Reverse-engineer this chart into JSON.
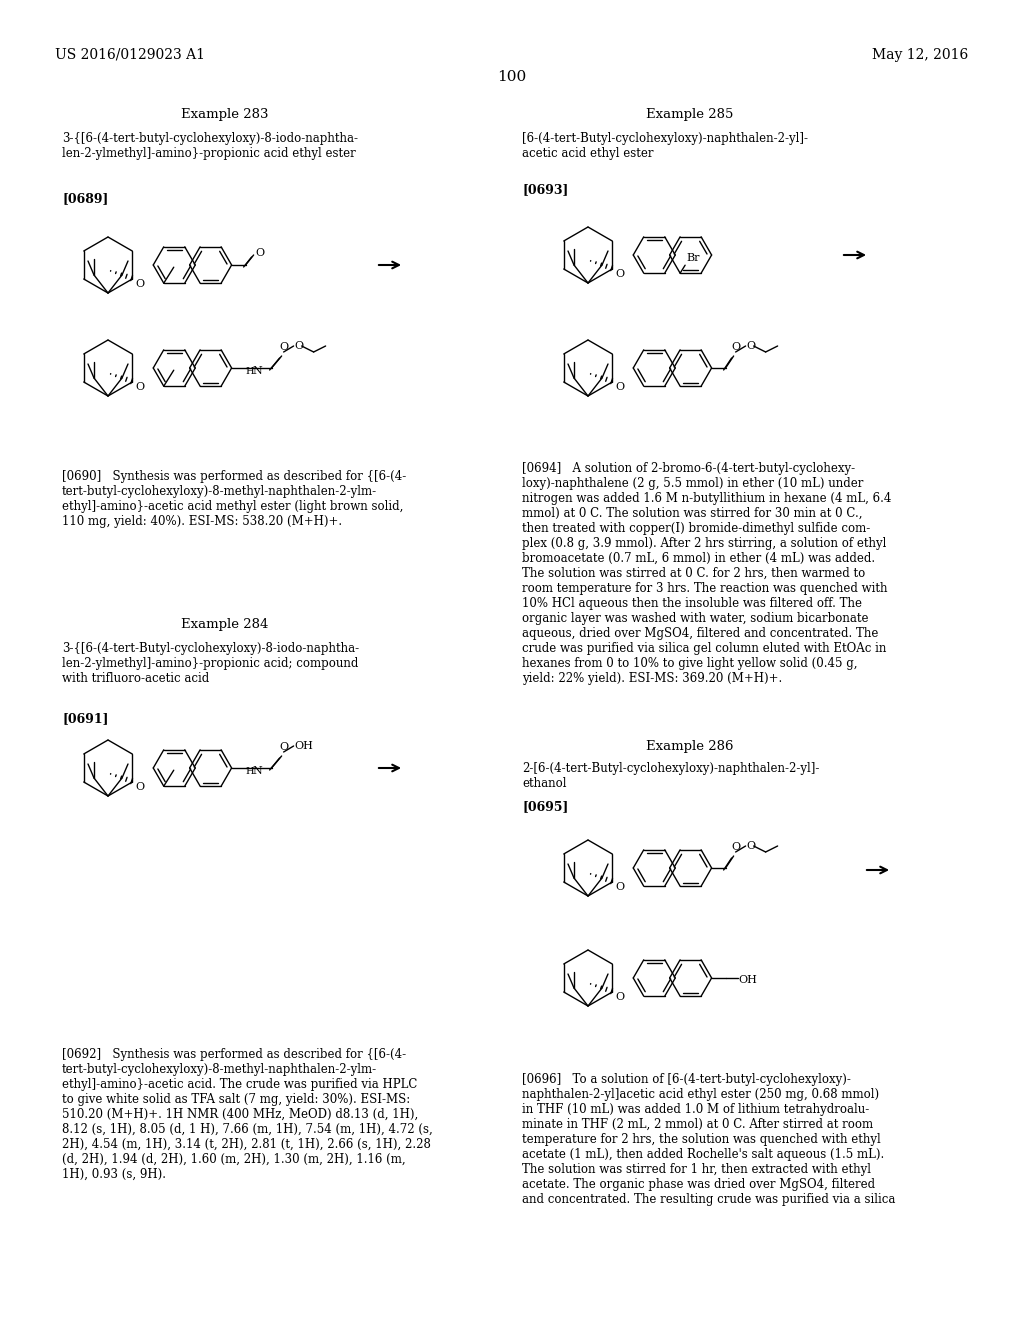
{
  "background_color": "#ffffff",
  "page_number": "100",
  "header_left": "US 2016/0129023 A1",
  "header_right": "May 12, 2016",
  "example283_title": "Example 283",
  "example283_compound": "3-{[6-(4-tert-butyl-cyclohexyloxy)-8-iodo-naphtha-\nlen-2-ylmethyl]-amino}-propionic acid ethyl ester",
  "example283_ref": "[0689]",
  "example283_text": "[0690]   Synthesis was performed as described for {[6-(4-\ntert-butyl-cyclohexyloxy)-8-methyl-naphthalen-2-ylm-\nethyl]-amino}-acetic acid methyl ester (light brown solid,\n110 mg, yield: 40%). ESI-MS: 538.20 (M+H)+.",
  "example284_title": "Example 284",
  "example284_compound": "3-{[6-(4-tert-Butyl-cyclohexyloxy)-8-iodo-naphtha-\nlen-2-ylmethyl]-amino}-propionic acid; compound\nwith trifluoro-acetic acid",
  "example284_ref": "[0691]",
  "example284_text": "[0692]   Synthesis was performed as described for {[6-(4-\ntert-butyl-cyclohexyloxy)-8-methyl-naphthalen-2-ylm-\nethyl]-amino}-acetic acid. The crude was purified via HPLC\nto give white solid as TFA salt (7 mg, yield: 30%). ESI-MS:\n510.20 (M+H)+. 1H NMR (400 MHz, MeOD) d8.13 (d, 1H),\n8.12 (s, 1H), 8.05 (d, 1 H), 7.66 (m, 1H), 7.54 (m, 1H), 4.72 (s,\n2H), 4.54 (m, 1H), 3.14 (t, 2H), 2.81 (t, 1H), 2.66 (s, 1H), 2.28\n(d, 2H), 1.94 (d, 2H), 1.60 (m, 2H), 1.30 (m, 2H), 1.16 (m,\n1H), 0.93 (s, 9H).",
  "example285_title": "Example 285",
  "example285_compound": "[6-(4-tert-Butyl-cyclohexyloxy)-naphthalen-2-yl]-\nacetic acid ethyl ester",
  "example285_ref": "[0693]",
  "example285_text": "[0694]   A solution of 2-bromo-6-(4-tert-butyl-cyclohexy-\nloxy)-naphthalene (2 g, 5.5 mmol) in ether (10 mL) under\nnitrogen was added 1.6 M n-butyllithium in hexane (4 mL, 6.4\nmmol) at 0 C. The solution was stirred for 30 min at 0 C.,\nthen treated with copper(I) bromide-dimethyl sulfide com-\nplex (0.8 g, 3.9 mmol). After 2 hrs stirring, a solution of ethyl\nbromoacetate (0.7 mL, 6 mmol) in ether (4 mL) was added.\nThe solution was stirred at 0 C. for 2 hrs, then warmed to\nroom temperature for 3 hrs. The reaction was quenched with\n10% HCl aqueous then the insoluble was filtered off. The\norganic layer was washed with water, sodium bicarbonate\naqueous, dried over MgSO4, filtered and concentrated. The\ncrude was purified via silica gel column eluted with EtOAc in\nhexanes from 0 to 10% to give light yellow solid (0.45 g,\nyield: 22% yield). ESI-MS: 369.20 (M+H)+.",
  "example286_title": "Example 286",
  "example286_compound": "2-[6-(4-tert-Butyl-cyclohexyloxy)-naphthalen-2-yl]-\nethanol",
  "example286_ref": "[0695]",
  "example286_text": "[0696]   To a solution of [6-(4-tert-butyl-cyclohexyloxy)-\nnaphthalen-2-yl]acetic acid ethyl ester (250 mg, 0.68 mmol)\nin THF (10 mL) was added 1.0 M of lithium tetrahydroalu-\nminate in THF (2 mL, 2 mmol) at 0 C. After stirred at room\ntemperature for 2 hrs, the solution was quenched with ethyl\nacetate (1 mL), then added Rochelle's salt aqueous (1.5 mL).\nThe solution was stirred for 1 hr, then extracted with ethyl\nacetate. The organic phase was dried over MgSO4, filtered\nand concentrated. The resulting crude was purified via a silica"
}
